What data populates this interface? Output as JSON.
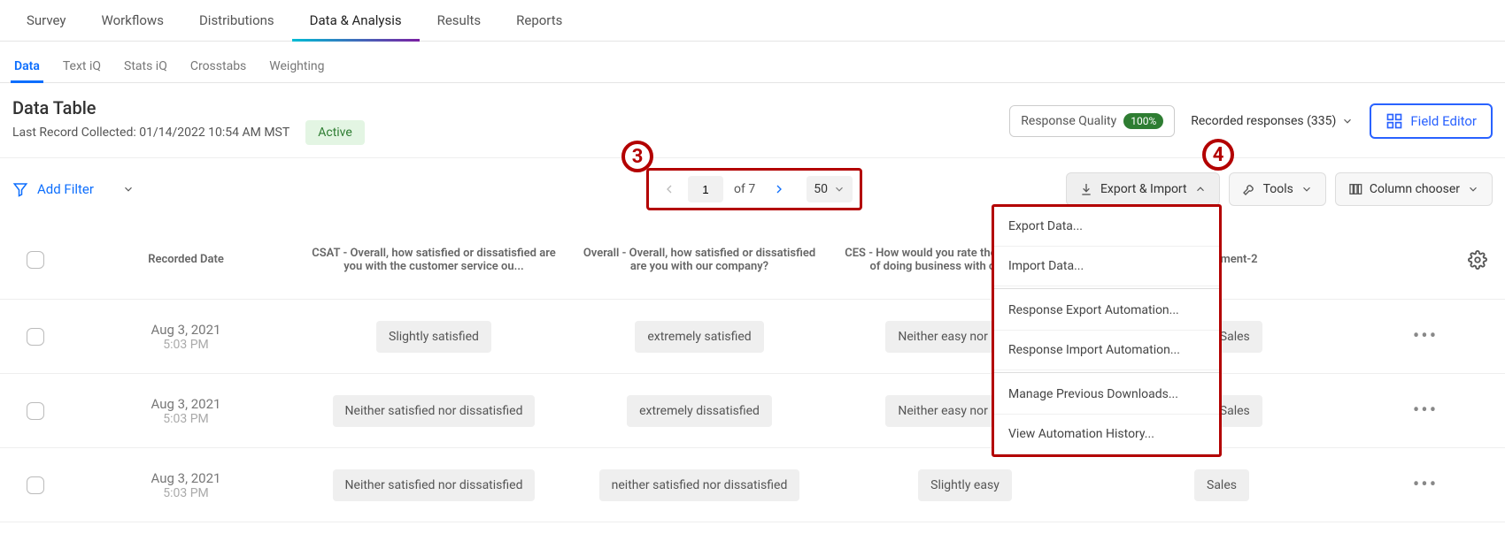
{
  "mainTabs": {
    "items": [
      "Survey",
      "Workflows",
      "Distributions",
      "Data & Analysis",
      "Results",
      "Reports"
    ],
    "activeIndex": 3
  },
  "subTabs": {
    "items": [
      "Data",
      "Text iQ",
      "Stats iQ",
      "Crosstabs",
      "Weighting"
    ],
    "activeIndex": 0
  },
  "header": {
    "title": "Data Table",
    "lastRecord": "Last Record Collected: 01/14/2022 10:54 AM MST",
    "status": "Active",
    "responseQuality": {
      "label": "Response Quality",
      "value": "100%"
    },
    "recordedResponses": "Recorded responses (335)",
    "fieldEditor": "Field Editor"
  },
  "toolbar": {
    "addFilter": "Add Filter",
    "page": {
      "current": "1",
      "ofLabel": "of 7",
      "size": "50"
    },
    "exportImport": "Export & Import",
    "tools": "Tools",
    "columnChooser": "Column chooser"
  },
  "dropdown": {
    "items": [
      "Export Data...",
      "Import Data...",
      "Response Export Automation...",
      "Response Import Automation...",
      "Manage Previous Downloads...",
      "View Automation History..."
    ]
  },
  "callouts": {
    "c3": "3",
    "c4": "4"
  },
  "table": {
    "columns": [
      "Recorded Date",
      "CSAT - Overall, how satisfied or dissatisfied are you with the customer service ou...",
      "Overall - Overall, how satisfied or dissatisfied are you with our company?",
      "CES - How would you rate the ease or difficulty of doing business with our compan...",
      "Department-2"
    ],
    "rows": [
      {
        "date": "Aug 3, 2021",
        "time": "5:03 PM",
        "csat": "Slightly satisfied",
        "overall": "extremely satisfied",
        "ces": "Neither easy nor difficult",
        "dept": "Non-Sales"
      },
      {
        "date": "Aug 3, 2021",
        "time": "5:03 PM",
        "csat": "Neither satisfied nor dissatisfied",
        "overall": "extremely dissatisfied",
        "ces": "Neither easy nor difficult",
        "dept": "Non-Sales"
      },
      {
        "date": "Aug 3, 2021",
        "time": "5:03 PM",
        "csat": "Neither satisfied nor dissatisfied",
        "overall": "neither satisfied nor dissatisfied",
        "ces": "Slightly easy",
        "dept": "Sales"
      }
    ]
  }
}
